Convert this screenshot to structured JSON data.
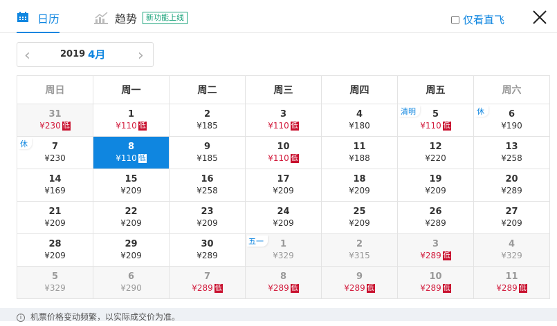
{
  "tabs": {
    "calendar": "日历",
    "trend": "趋势",
    "new_badge": "新功能上线"
  },
  "direct_only": {
    "label": "仅看直飞",
    "checked": false
  },
  "month_nav": {
    "year": "2019",
    "month": "4月",
    "prev": "‹",
    "next": "›"
  },
  "weekdays": [
    "周日",
    "周一",
    "周二",
    "周三",
    "周四",
    "周五",
    "周六"
  ],
  "low_label": "低",
  "weeks": [
    [
      {
        "day": "31",
        "price": "¥230",
        "low": true,
        "out": true
      },
      {
        "day": "1",
        "price": "¥110",
        "low": true
      },
      {
        "day": "2",
        "price": "¥185"
      },
      {
        "day": "3",
        "price": "¥110",
        "low": true
      },
      {
        "day": "4",
        "price": "¥180"
      },
      {
        "day": "5",
        "price": "¥110",
        "low": true,
        "holiday": "清明"
      },
      {
        "day": "6",
        "price": "¥190",
        "holiday": "休"
      }
    ],
    [
      {
        "day": "7",
        "price": "¥230",
        "holiday": "休"
      },
      {
        "day": "8",
        "price": "¥110",
        "low": true,
        "selected": true
      },
      {
        "day": "9",
        "price": "¥185"
      },
      {
        "day": "10",
        "price": "¥110",
        "low": true
      },
      {
        "day": "11",
        "price": "¥188"
      },
      {
        "day": "12",
        "price": "¥220"
      },
      {
        "day": "13",
        "price": "¥258"
      }
    ],
    [
      {
        "day": "14",
        "price": "¥169"
      },
      {
        "day": "15",
        "price": "¥209"
      },
      {
        "day": "16",
        "price": "¥258"
      },
      {
        "day": "17",
        "price": "¥209"
      },
      {
        "day": "18",
        "price": "¥209"
      },
      {
        "day": "19",
        "price": "¥209"
      },
      {
        "day": "20",
        "price": "¥289"
      }
    ],
    [
      {
        "day": "21",
        "price": "¥209"
      },
      {
        "day": "22",
        "price": "¥209"
      },
      {
        "day": "23",
        "price": "¥209"
      },
      {
        "day": "24",
        "price": "¥209"
      },
      {
        "day": "25",
        "price": "¥209"
      },
      {
        "day": "26",
        "price": "¥289"
      },
      {
        "day": "27",
        "price": "¥209"
      }
    ],
    [
      {
        "day": "28",
        "price": "¥209"
      },
      {
        "day": "29",
        "price": "¥209"
      },
      {
        "day": "30",
        "price": "¥289"
      },
      {
        "day": "1",
        "price": "¥329",
        "out": true,
        "holiday": "五一"
      },
      {
        "day": "2",
        "price": "¥315",
        "out": true
      },
      {
        "day": "3",
        "price": "¥289",
        "low": true,
        "out": true
      },
      {
        "day": "4",
        "price": "¥329",
        "out": true
      }
    ],
    [
      {
        "day": "5",
        "price": "¥329",
        "out": true
      },
      {
        "day": "6",
        "price": "¥290",
        "out": true
      },
      {
        "day": "7",
        "price": "¥289",
        "low": true,
        "out": true
      },
      {
        "day": "8",
        "price": "¥289",
        "low": true,
        "out": true
      },
      {
        "day": "9",
        "price": "¥289",
        "low": true,
        "out": true
      },
      {
        "day": "10",
        "price": "¥289",
        "low": true,
        "out": true
      },
      {
        "day": "11",
        "price": "¥289",
        "low": true,
        "out": true
      }
    ]
  ],
  "footer": {
    "notice": "机票价格变动频繁，以实际成交价为准。"
  },
  "colors": {
    "accent": "#0f86e0",
    "low": "#d21b3c",
    "badge": "#1aa37a"
  }
}
